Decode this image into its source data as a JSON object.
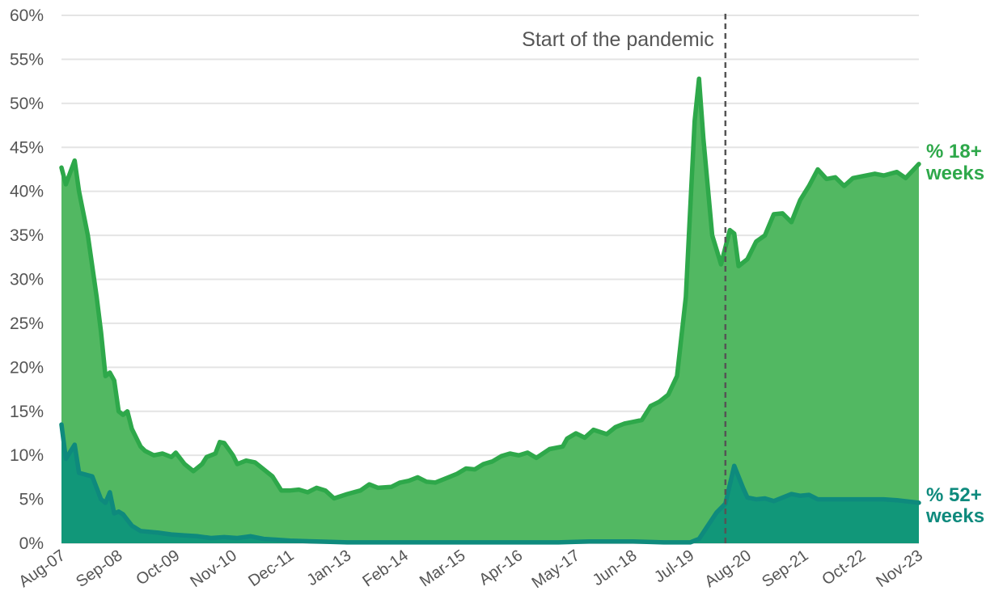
{
  "chart_data": {
    "type": "area",
    "x_tick_labels": [
      "Aug-07",
      "Sep-08",
      "Oct-09",
      "Nov-10",
      "Dec-11",
      "Jan-13",
      "Feb-14",
      "Mar-15",
      "Apr-16",
      "May-17",
      "Jun-18",
      "Jul-19",
      "Aug-20",
      "Sep-21",
      "Oct-22",
      "Nov-23"
    ],
    "y_tick_labels": [
      "0%",
      "5%",
      "10%",
      "15%",
      "20%",
      "25%",
      "30%",
      "35%",
      "40%",
      "45%",
      "50%",
      "55%",
      "60%"
    ],
    "ylim": [
      0,
      60
    ],
    "y_unit": "%",
    "grid": true,
    "annotation": {
      "label": "Start of the pandemic",
      "x": "Mar-20"
    },
    "series": [
      {
        "name": "% 18+ weeks",
        "color": "#2ea84a",
        "fill": "#52b862",
        "points": [
          [
            "Aug-07",
            42.7
          ],
          [
            "Sep-07",
            40.8
          ],
          [
            "Nov-07",
            43.5
          ],
          [
            "Dec-07",
            40
          ],
          [
            "Feb-08",
            35
          ],
          [
            "Apr-08",
            28
          ],
          [
            "May-08",
            24
          ],
          [
            "Jun-08",
            19
          ],
          [
            "Jul-08",
            19.4
          ],
          [
            "Aug-08",
            18.5
          ],
          [
            "Sep-08",
            15
          ],
          [
            "Oct-08",
            14.6
          ],
          [
            "Nov-08",
            15
          ],
          [
            "Dec-08",
            13
          ],
          [
            "Feb-09",
            11
          ],
          [
            "Mar-09",
            10.5
          ],
          [
            "May-09",
            10
          ],
          [
            "Jul-09",
            10.2
          ],
          [
            "Sep-09",
            9.8
          ],
          [
            "Oct-09",
            10.3
          ],
          [
            "Dec-09",
            9
          ],
          [
            "Feb-10",
            8.2
          ],
          [
            "Apr-10",
            9
          ],
          [
            "May-10",
            9.8
          ],
          [
            "Jul-10",
            10.2
          ],
          [
            "Aug-10",
            11.5
          ],
          [
            "Sep-10",
            11.4
          ],
          [
            "Nov-10",
            10
          ],
          [
            "Dec-10",
            9
          ],
          [
            "Feb-11",
            9.4
          ],
          [
            "Apr-11",
            9.2
          ],
          [
            "Jun-11",
            8.4
          ],
          [
            "Aug-11",
            7.6
          ],
          [
            "Oct-11",
            6
          ],
          [
            "Dec-11",
            6
          ],
          [
            "Feb-12",
            6.1
          ],
          [
            "Apr-12",
            5.8
          ],
          [
            "Jun-12",
            6.3
          ],
          [
            "Aug-12",
            6
          ],
          [
            "Oct-12",
            5.1
          ],
          [
            "Jan-13",
            5.6
          ],
          [
            "Apr-13",
            6
          ],
          [
            "Jun-13",
            6.7
          ],
          [
            "Aug-13",
            6.3
          ],
          [
            "Nov-13",
            6.4
          ],
          [
            "Jan-14",
            6.9
          ],
          [
            "Mar-14",
            7.1
          ],
          [
            "May-14",
            7.5
          ],
          [
            "Jul-14",
            7
          ],
          [
            "Sep-14",
            6.9
          ],
          [
            "Dec-14",
            7.5
          ],
          [
            "Feb-15",
            7.9
          ],
          [
            "Apr-15",
            8.5
          ],
          [
            "Jun-15",
            8.4
          ],
          [
            "Aug-15",
            9
          ],
          [
            "Oct-15",
            9.3
          ],
          [
            "Dec-15",
            9.9
          ],
          [
            "Feb-16",
            10.2
          ],
          [
            "Apr-16",
            10
          ],
          [
            "Jun-16",
            10.3
          ],
          [
            "Aug-16",
            9.7
          ],
          [
            "Nov-16",
            10.7
          ],
          [
            "Feb-17",
            11
          ],
          [
            "Mar-17",
            11.9
          ],
          [
            "May-17",
            12.5
          ],
          [
            "Jul-17",
            12
          ],
          [
            "Sep-17",
            12.9
          ],
          [
            "Dec-17",
            12.4
          ],
          [
            "Feb-18",
            13.2
          ],
          [
            "Apr-18",
            13.6
          ],
          [
            "Jun-18",
            13.8
          ],
          [
            "Aug-18",
            14
          ],
          [
            "Oct-18",
            15.6
          ],
          [
            "Dec-18",
            16.1
          ],
          [
            "Feb-19",
            16.9
          ],
          [
            "Apr-19",
            19
          ],
          [
            "Jun-19",
            28
          ],
          [
            "Jul-19",
            38
          ],
          [
            "Aug-19",
            48
          ],
          [
            "Sep-19",
            52.8
          ],
          [
            "Oct-19",
            46
          ],
          [
            "Dec-19",
            35
          ],
          [
            "Feb-20",
            31.7
          ],
          [
            "Apr-20",
            35.6
          ],
          [
            "May-20",
            35.2
          ],
          [
            "Jun-20",
            31.5
          ],
          [
            "Aug-20",
            32.3
          ],
          [
            "Oct-20",
            34.3
          ],
          [
            "Dec-20",
            35
          ],
          [
            "Feb-21",
            37.4
          ],
          [
            "Apr-21",
            37.5
          ],
          [
            "Jun-21",
            36.5
          ],
          [
            "Aug-21",
            39
          ],
          [
            "Oct-21",
            40.6
          ],
          [
            "Dec-21",
            42.5
          ],
          [
            "Feb-22",
            41.4
          ],
          [
            "Apr-22",
            41.6
          ],
          [
            "Jun-22",
            40.6
          ],
          [
            "Aug-22",
            41.5
          ],
          [
            "Nov-22",
            41.8
          ],
          [
            "Jan-23",
            42
          ],
          [
            "Mar-23",
            41.8
          ],
          [
            "Jun-23",
            42.2
          ],
          [
            "Aug-23",
            41.5
          ],
          [
            "Nov-23",
            43.1
          ]
        ]
      },
      {
        "name": "% 52+ weeks",
        "color": "#0e8a7d",
        "fill": "#119779",
        "points": [
          [
            "Aug-07",
            13.5
          ],
          [
            "Sep-07",
            9.6
          ],
          [
            "Nov-07",
            11.2
          ],
          [
            "Dec-07",
            8
          ],
          [
            "Mar-08",
            7.6
          ],
          [
            "May-08",
            5
          ],
          [
            "Jun-08",
            4.6
          ],
          [
            "Jul-08",
            5.8
          ],
          [
            "Aug-08",
            3.4
          ],
          [
            "Sep-08",
            3.6
          ],
          [
            "Oct-08",
            3.3
          ],
          [
            "Dec-08",
            2
          ],
          [
            "Feb-09",
            1.4
          ],
          [
            "Jun-09",
            1.2
          ],
          [
            "Sep-09",
            1
          ],
          [
            "Dec-09",
            0.9
          ],
          [
            "Mar-10",
            0.8
          ],
          [
            "Jun-10",
            0.6
          ],
          [
            "Sep-10",
            0.7
          ],
          [
            "Dec-10",
            0.6
          ],
          [
            "Mar-11",
            0.8
          ],
          [
            "Jun-11",
            0.5
          ],
          [
            "Sep-11",
            0.4
          ],
          [
            "Dec-11",
            0.3
          ],
          [
            "Jun-12",
            0.2
          ],
          [
            "Jan-13",
            0.1
          ],
          [
            "Jan-14",
            0.1
          ],
          [
            "Jan-15",
            0.1
          ],
          [
            "Jan-16",
            0.1
          ],
          [
            "Jan-17",
            0.1
          ],
          [
            "Aug-17",
            0.2
          ],
          [
            "Jan-18",
            0.2
          ],
          [
            "Jun-18",
            0.2
          ],
          [
            "Jan-19",
            0.1
          ],
          [
            "Jul-19",
            0.1
          ],
          [
            "Aug-19",
            0.3
          ],
          [
            "Sep-19",
            0.5
          ],
          [
            "Nov-19",
            2
          ],
          [
            "Jan-20",
            3.5
          ],
          [
            "Mar-20",
            4.5
          ],
          [
            "May-20",
            8.8
          ],
          [
            "Jul-20",
            6.3
          ],
          [
            "Aug-20",
            5.2
          ],
          [
            "Oct-20",
            5
          ],
          [
            "Dec-20",
            5.1
          ],
          [
            "Feb-21",
            4.8
          ],
          [
            "Apr-21",
            5.2
          ],
          [
            "Jun-21",
            5.6
          ],
          [
            "Aug-21",
            5.4
          ],
          [
            "Oct-21",
            5.5
          ],
          [
            "Dec-21",
            5
          ],
          [
            "Mar-22",
            5
          ],
          [
            "Jun-22",
            5
          ],
          [
            "Sep-22",
            5
          ],
          [
            "Dec-22",
            5
          ],
          [
            "Mar-23",
            5
          ],
          [
            "Jun-23",
            4.9
          ],
          [
            "Nov-23",
            4.6
          ]
        ]
      }
    ]
  },
  "labels": {
    "annotation": "Start of the pandemic",
    "series_18_line1": "% 18+",
    "series_18_line2": "weeks",
    "series_52_line1": "% 52+",
    "series_52_line2": "weeks"
  }
}
